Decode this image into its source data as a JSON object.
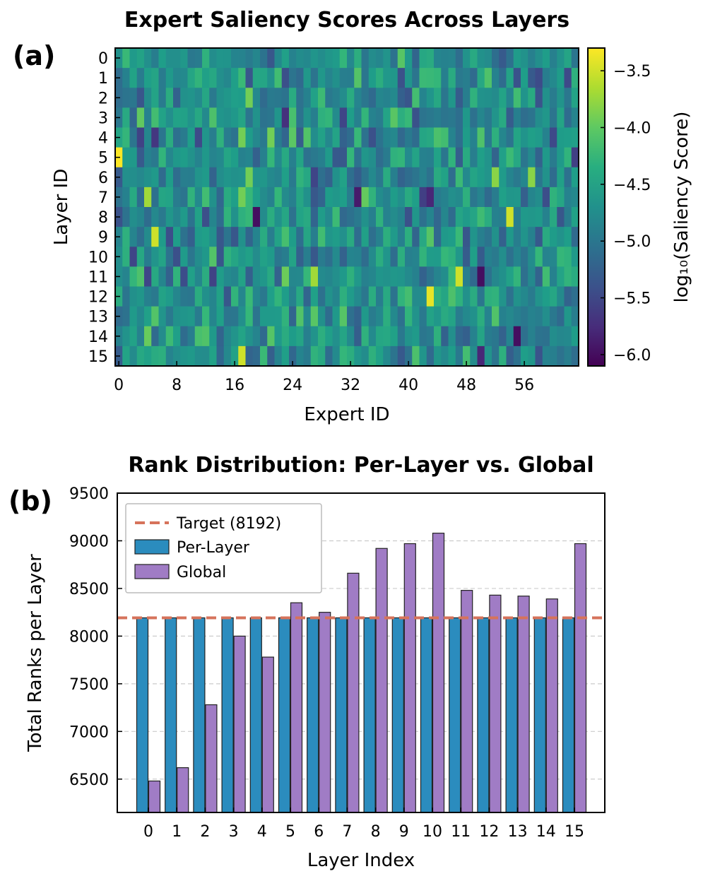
{
  "chart_data": [
    {
      "panel_label": "(a)",
      "type": "heatmap",
      "title": "Expert Saliency Scores Across Layers",
      "xlabel": "Expert ID",
      "ylabel": "Layer ID",
      "colorbar_label": "log₁₀(Saliency Score)",
      "n_rows": 16,
      "n_cols": 64,
      "x_ticks": [
        0,
        8,
        16,
        24,
        32,
        40,
        48,
        56
      ],
      "y_ticks": [
        0,
        1,
        2,
        3,
        4,
        5,
        6,
        7,
        8,
        9,
        10,
        11,
        12,
        13,
        14,
        15
      ],
      "colorbar_ticks": [
        "−3.5",
        "−4.0",
        "−4.5",
        "−5.0",
        "−5.5",
        "−6.0"
      ],
      "colorbar_tick_values": [
        -3.5,
        -4.0,
        -4.5,
        -5.0,
        -5.5,
        -6.0
      ],
      "value_range": [
        -6.1,
        -3.3
      ],
      "colormap": "viridis",
      "highlights": [
        {
          "layer": 5,
          "expert": 0,
          "value": -3.3
        },
        {
          "layer": 4,
          "expert": 17,
          "value": -3.9
        },
        {
          "layer": 4,
          "expert": 21,
          "value": -3.9
        },
        {
          "layer": 6,
          "expert": 18,
          "value": -3.9
        },
        {
          "layer": 7,
          "expert": 4,
          "value": -3.7
        },
        {
          "layer": 7,
          "expert": 17,
          "value": -3.9
        },
        {
          "layer": 8,
          "expert": 19,
          "value": -6.0
        },
        {
          "layer": 9,
          "expert": 5,
          "value": -3.5
        },
        {
          "layer": 8,
          "expert": 54,
          "value": -3.5
        },
        {
          "layer": 11,
          "expert": 27,
          "value": -3.7
        },
        {
          "layer": 11,
          "expert": 47,
          "value": -3.5
        },
        {
          "layer": 11,
          "expert": 50,
          "value": -6.0
        },
        {
          "layer": 12,
          "expert": 43,
          "value": -3.4
        },
        {
          "layer": 14,
          "expert": 55,
          "value": -6.0
        },
        {
          "layer": 15,
          "expert": 17,
          "value": -3.5
        },
        {
          "layer": 15,
          "expert": 50,
          "value": -5.8
        },
        {
          "layer": 6,
          "expert": 52,
          "value": -3.8
        },
        {
          "layer": 6,
          "expert": 57,
          "value": -3.8
        },
        {
          "layer": 3,
          "expert": 23,
          "value": -5.7
        },
        {
          "layer": 7,
          "expert": 33,
          "value": -5.9
        },
        {
          "layer": 7,
          "expert": 43,
          "value": -5.8
        }
      ]
    },
    {
      "panel_label": "(b)",
      "type": "bar",
      "title": "Rank Distribution: Per-Layer vs. Global",
      "xlabel": "Layer Index",
      "ylabel": "Total Ranks per Layer",
      "categories": [
        "0",
        "1",
        "2",
        "3",
        "4",
        "5",
        "6",
        "7",
        "8",
        "9",
        "10",
        "11",
        "12",
        "13",
        "14",
        "15"
      ],
      "series": [
        {
          "name": "Per-Layer",
          "color": "#2b8cbe",
          "values": [
            8192,
            8192,
            8192,
            8192,
            8192,
            8192,
            8192,
            8192,
            8192,
            8192,
            8192,
            8192,
            8192,
            8192,
            8192,
            8192
          ]
        },
        {
          "name": "Global",
          "color": "#a07cc5",
          "values": [
            6480,
            6620,
            7280,
            8000,
            7780,
            8350,
            8250,
            8660,
            8920,
            8970,
            9080,
            8480,
            8430,
            8420,
            8390,
            8970
          ]
        }
      ],
      "target": {
        "label": "Target (8192)",
        "value": 8192,
        "color": "#d6735b"
      },
      "ylim": [
        6150,
        9500
      ],
      "y_ticks": [
        6500,
        7000,
        7500,
        8000,
        8500,
        9000,
        9500
      ],
      "grid": "horizontal dashed",
      "legend_position": "top-left"
    }
  ]
}
